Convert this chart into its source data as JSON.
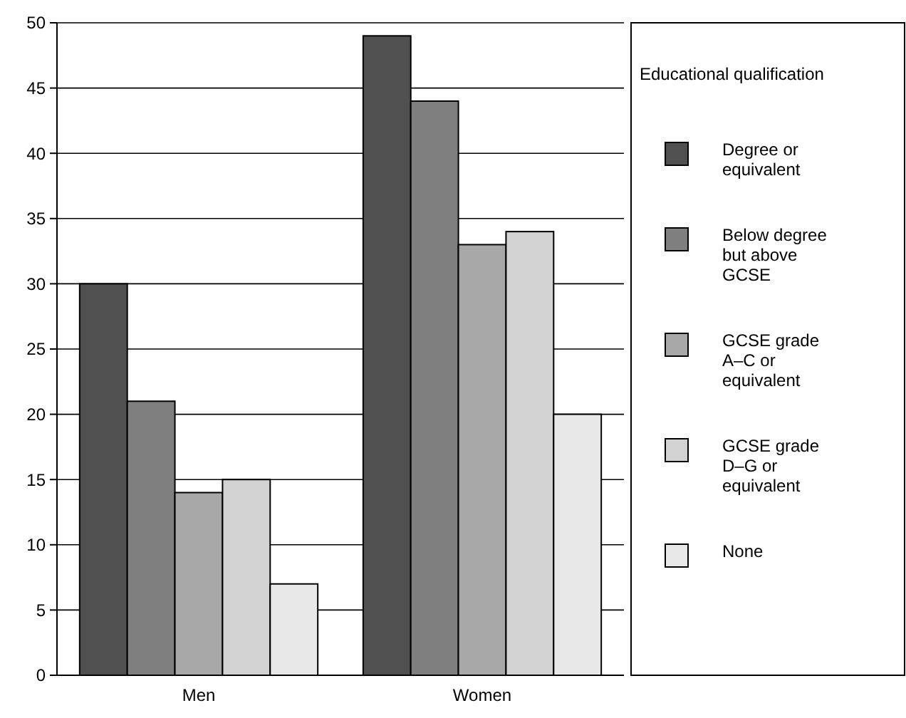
{
  "chart_data": {
    "type": "bar",
    "categories": [
      "Men",
      "Women"
    ],
    "series": [
      {
        "name": "Degree or equivalent",
        "color": "#505050",
        "values": [
          30,
          49
        ]
      },
      {
        "name": "Below degree but above GCSE",
        "color": "#7f7f7f",
        "values": [
          21,
          44
        ]
      },
      {
        "name": "GCSE grade A–C or equivalent",
        "color": "#a8a8a8",
        "values": [
          14,
          33
        ]
      },
      {
        "name": "GCSE grade D–G or equivalent",
        "color": "#d2d2d2",
        "values": [
          15,
          34
        ]
      },
      {
        "name": "None",
        "color": "#e8e8e8",
        "values": [
          7,
          20
        ]
      }
    ],
    "legend_title": "Educational qualification",
    "legend": "right",
    "grid": "y",
    "ylim": [
      0,
      50
    ],
    "yticks": [
      0,
      5,
      10,
      15,
      20,
      25,
      30,
      35,
      40,
      45,
      50
    ]
  }
}
